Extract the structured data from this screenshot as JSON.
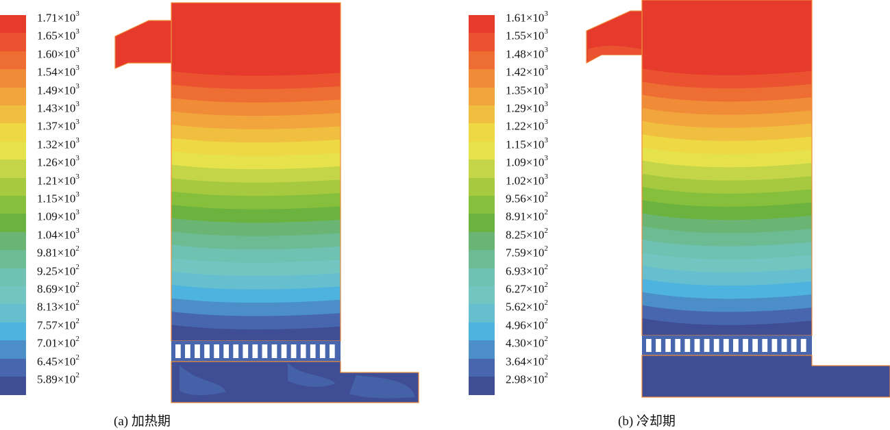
{
  "panels": [
    {
      "id": "a",
      "caption": "(a)  加热期",
      "scale": {
        "mantissas": [
          "1.71",
          "1.65",
          "1.60",
          "1.54",
          "1.49",
          "1.43",
          "1.37",
          "1.32",
          "1.26",
          "1.21",
          "1.15",
          "1.09",
          "1.04",
          "9.81",
          "9.25",
          "8.69",
          "8.13",
          "7.57",
          "7.01",
          "6.45",
          "5.89"
        ],
        "exponents": [
          "3",
          "3",
          "3",
          "3",
          "3",
          "3",
          "3",
          "3",
          "3",
          "3",
          "3",
          "3",
          "3",
          "2",
          "2",
          "2",
          "2",
          "2",
          "2",
          "2",
          "2"
        ],
        "times": "×10",
        "colors": [
          "#e63a2d",
          "#eb5330",
          "#ee6d33",
          "#f08b38",
          "#f2a53c",
          "#f1bf3f",
          "#eed844",
          "#e6e24c",
          "#c4d548",
          "#a6c940",
          "#85bf3c",
          "#6bb23f",
          "#6ab573",
          "#6cbb93",
          "#6fc1b1",
          "#73c5c2",
          "#66bfcf",
          "#4eb3df",
          "#4b8ec8",
          "#4766ad",
          "#3f4d94"
        ]
      }
    },
    {
      "id": "b",
      "caption": "(b) 冷却期",
      "scale": {
        "mantissas": [
          "1.61",
          "1.55",
          "1.48",
          "1.42",
          "1.35",
          "1.29",
          "1.22",
          "1.15",
          "1.09",
          "1.02",
          "9.56",
          "8.91",
          "8.25",
          "7.59",
          "6.93",
          "6.27",
          "5.62",
          "4.96",
          "4.30",
          "3.64",
          "2.98"
        ],
        "exponents": [
          "3",
          "3",
          "3",
          "3",
          "3",
          "3",
          "3",
          "3",
          "3",
          "3",
          "2",
          "2",
          "2",
          "2",
          "2",
          "2",
          "2",
          "2",
          "2",
          "2",
          "2"
        ],
        "times": "×10",
        "colors": [
          "#e63a2d",
          "#eb5330",
          "#ee6d33",
          "#f08b38",
          "#f2a53c",
          "#f1bf3f",
          "#eed844",
          "#e6e24c",
          "#c4d548",
          "#a6c940",
          "#85bf3c",
          "#6bb23f",
          "#6ab573",
          "#6cbb93",
          "#6fc1b1",
          "#73c5c2",
          "#66bfcf",
          "#4eb3df",
          "#4b8ec8",
          "#4766ad",
          "#3f4d94"
        ]
      }
    }
  ]
}
